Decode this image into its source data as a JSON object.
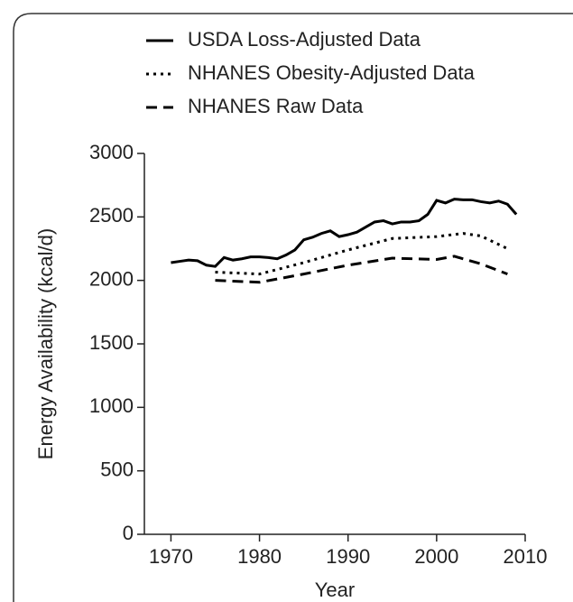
{
  "chart_data": {
    "type": "line",
    "x_label": "Year",
    "y_label": "Energy Availability (kcal/d)",
    "xlim": [
      1967,
      2010
    ],
    "xticks": [
      1970,
      1980,
      1990,
      2000,
      2010
    ],
    "ylim": [
      0,
      3000
    ],
    "yticks": [
      0,
      500,
      1000,
      1500,
      2000,
      2500,
      3000
    ],
    "legend": "top-left",
    "series": [
      {
        "name": "USDA Loss-Adjusted Data",
        "color": "#000000",
        "dash": "solid",
        "x": [
          1970,
          1971,
          1972,
          1973,
          1974,
          1975,
          1976,
          1977,
          1978,
          1979,
          1980,
          1981,
          1982,
          1983,
          1984,
          1985,
          1986,
          1987,
          1988,
          1989,
          1990,
          1991,
          1992,
          1993,
          1994,
          1995,
          1996,
          1997,
          1998,
          1999,
          2000,
          2001,
          2002,
          2003,
          2004,
          2005,
          2006,
          2007,
          2008,
          2009
        ],
        "values": [
          2140,
          2150,
          2160,
          2155,
          2120,
          2110,
          2180,
          2160,
          2170,
          2185,
          2185,
          2180,
          2170,
          2200,
          2240,
          2320,
          2340,
          2370,
          2390,
          2345,
          2360,
          2380,
          2420,
          2460,
          2470,
          2445,
          2460,
          2460,
          2470,
          2520,
          2630,
          2610,
          2640,
          2635,
          2635,
          2620,
          2610,
          2625,
          2600,
          2520
        ]
      },
      {
        "name": "NHANES Obesity-Adjusted Data",
        "color": "#000000",
        "dash": "dotted",
        "x": [
          1975,
          1980,
          1985,
          1990,
          1995,
          2000,
          2003,
          2005,
          2008
        ],
        "values": [
          2065,
          2050,
          2140,
          2240,
          2330,
          2345,
          2370,
          2350,
          2250
        ]
      },
      {
        "name": "NHANES Raw Data",
        "color": "#000000",
        "dash": "dashed",
        "x": [
          1975,
          1980,
          1985,
          1990,
          1995,
          2000,
          2002,
          2005,
          2008
        ],
        "values": [
          2000,
          1985,
          2050,
          2120,
          2175,
          2165,
          2190,
          2130,
          2050
        ]
      }
    ]
  }
}
